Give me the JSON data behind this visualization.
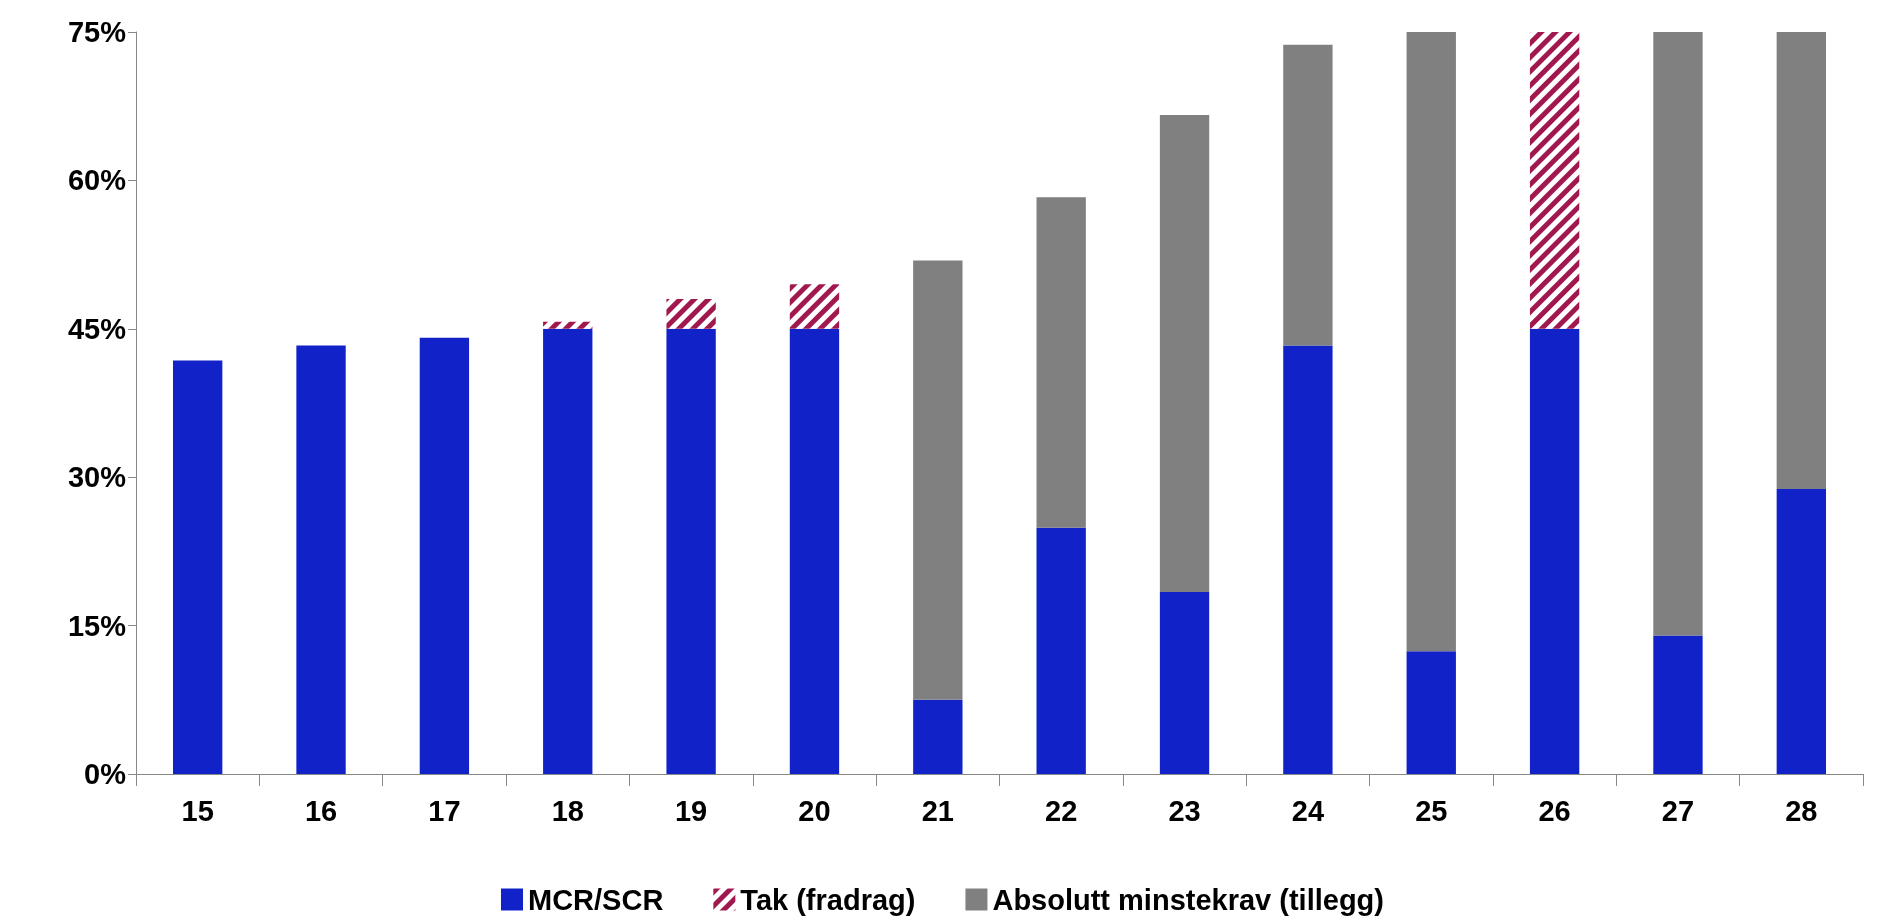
{
  "chart_data": {
    "type": "bar",
    "stacked": true,
    "categories": [
      "15",
      "16",
      "17",
      "18",
      "19",
      "20",
      "21",
      "22",
      "23",
      "24",
      "25",
      "26",
      "27",
      "28"
    ],
    "series": [
      {
        "name": "MCR/SCR",
        "color": "#1022c8",
        "values": [
          41.8,
          43.3,
          44.1,
          45,
          45,
          45,
          7.5,
          24.9,
          18.4,
          43.3,
          12.4,
          45,
          14,
          28.8
        ]
      },
      {
        "name": "Tak (fradrag)",
        "color": "#a0184e",
        "values": [
          null,
          null,
          null,
          0.7,
          3,
          4.5,
          null,
          null,
          null,
          null,
          null,
          30,
          null,
          null
        ]
      },
      {
        "name": "Absolutt minstekrav (tillegg)",
        "color": "#808080",
        "values": [
          null,
          null,
          null,
          null,
          null,
          null,
          44.4,
          33.4,
          48.2,
          30.4,
          62.6,
          null,
          61,
          46.2
        ]
      }
    ],
    "ylim": [
      0,
      75
    ],
    "yticks": [
      {
        "value": 0,
        "label": "0%"
      },
      {
        "value": 15,
        "label": "15%"
      },
      {
        "value": 30,
        "label": "30%"
      },
      {
        "value": 45,
        "label": "45%"
      },
      {
        "value": 60,
        "label": "60%"
      },
      {
        "value": 75,
        "label": "75%"
      }
    ],
    "grid": false,
    "legend": "bottom"
  }
}
